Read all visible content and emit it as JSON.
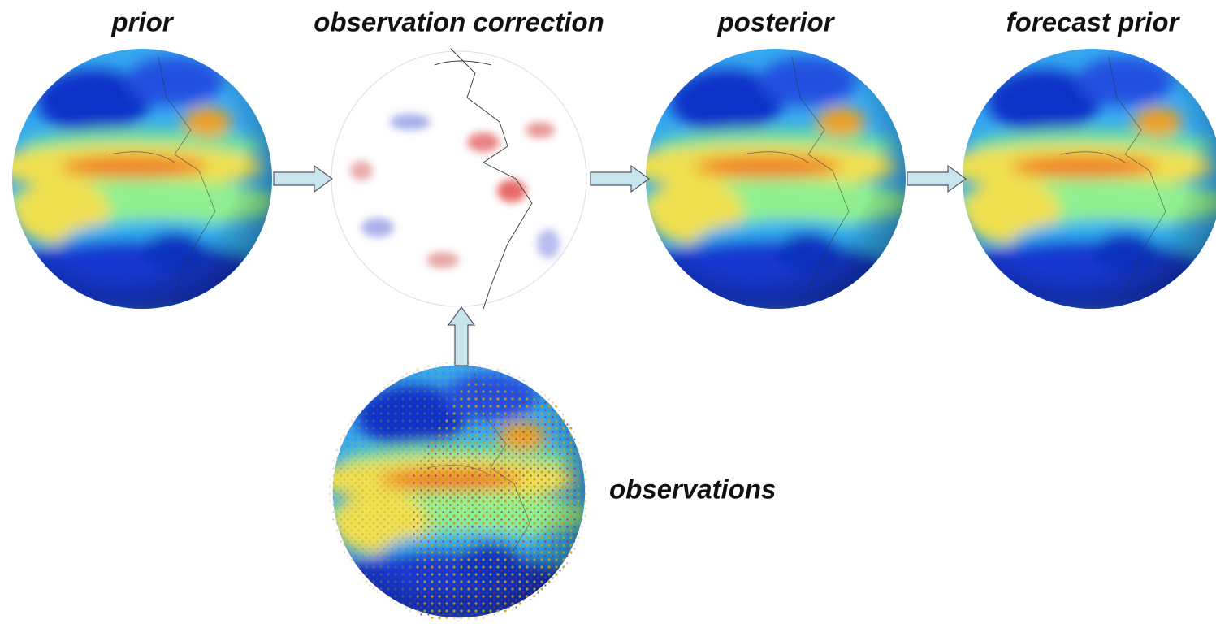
{
  "nodes": [
    {
      "label": "prior"
    },
    {
      "label": "observation correction"
    },
    {
      "label": "posterior"
    },
    {
      "label": "forecast prior"
    },
    {
      "label": "observations"
    }
  ]
}
